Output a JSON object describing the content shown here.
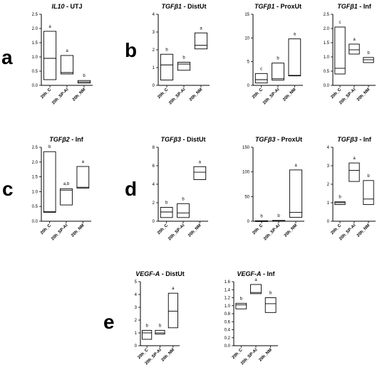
{
  "panel_labels": [
    {
      "id": "a",
      "text": "a"
    },
    {
      "id": "b",
      "text": "b"
    },
    {
      "id": "c",
      "text": "c"
    },
    {
      "id": "d",
      "text": "d"
    },
    {
      "id": "e",
      "text": "e"
    }
  ],
  "chart_data": [
    {
      "id": "il10-utj",
      "panel": "a",
      "type": "box",
      "title_gene": "IL10",
      "title_suffix": " - UTJ",
      "categories": [
        "20h_C",
        "20h_SP-AI",
        "20h_NM"
      ],
      "ylim": [
        0,
        2.5
      ],
      "yticks": [
        "0.0",
        "0.5",
        "1.0",
        "1.5",
        "2.0",
        "2.5"
      ],
      "boxes": [
        {
          "low": 0.2,
          "median": 0.95,
          "high": 1.9,
          "letter": "a"
        },
        {
          "low": 0.4,
          "median": 0.45,
          "high": 1.05,
          "letter": "a"
        },
        {
          "low": 0.08,
          "median": 0.12,
          "high": 0.17,
          "letter": "b"
        }
      ]
    },
    {
      "id": "tgfb1-distut",
      "panel": "b",
      "type": "box",
      "title_gene": "TGFβ1",
      "title_suffix": " - DistUt",
      "categories": [
        "20h_C",
        "20h_SP-AI",
        "20h_NM"
      ],
      "ylim": [
        0,
        4
      ],
      "yticks": [
        "0",
        "1",
        "2",
        "3",
        "4"
      ],
      "boxes": [
        {
          "low": 0.3,
          "median": 1.15,
          "high": 1.75,
          "letter": "b"
        },
        {
          "low": 0.85,
          "median": 1.2,
          "high": 1.3,
          "letter": "b"
        },
        {
          "low": 2.05,
          "median": 2.25,
          "high": 2.95,
          "letter": "a"
        }
      ]
    },
    {
      "id": "tgfb1-proxut",
      "panel": "b",
      "type": "box",
      "title_gene": "TGFβ1",
      "title_suffix": " - ProxUt",
      "categories": [
        "20h_C",
        "20h_SP-AI",
        "20h_NM"
      ],
      "ylim": [
        0,
        15
      ],
      "yticks": [
        "0",
        "5",
        "10",
        "15"
      ],
      "boxes": [
        {
          "low": 0.5,
          "median": 1.2,
          "high": 2.5,
          "letter": "c"
        },
        {
          "low": 1.1,
          "median": 1.4,
          "high": 4.7,
          "letter": "b"
        },
        {
          "low": 2.0,
          "median": 2.1,
          "high": 9.8,
          "letter": "a"
        }
      ]
    },
    {
      "id": "tgfb1-inf",
      "panel": "b",
      "type": "box",
      "title_gene": "TGFβ1",
      "title_suffix": " - Inf",
      "categories": [
        "20h_C",
        "20h_SP-AI",
        "20h_NM"
      ],
      "ylim": [
        0,
        2.5
      ],
      "yticks": [
        "0.0",
        "0.5",
        "1.0",
        "1.5",
        "2.0",
        "2.5"
      ],
      "boxes": [
        {
          "low": 0.4,
          "median": 0.6,
          "high": 2.05,
          "letter": "c"
        },
        {
          "low": 1.1,
          "median": 1.25,
          "high": 1.45,
          "letter": "a"
        },
        {
          "low": 0.8,
          "median": 0.9,
          "high": 0.98,
          "letter": "b"
        }
      ]
    },
    {
      "id": "tgfb2-inf",
      "panel": "c",
      "type": "box",
      "title_gene": "TGFβ2",
      "title_suffix": " - Inf",
      "categories": [
        "20h_C",
        "20h_SP-AI",
        "20h_NM"
      ],
      "ylim": [
        0,
        2.5
      ],
      "yticks": [
        "0.0",
        "0.5",
        "1.0",
        "1.5",
        "2.0",
        "2.5"
      ],
      "boxes": [
        {
          "low": 0.3,
          "median": 0.32,
          "high": 2.35,
          "letter": "b"
        },
        {
          "low": 0.55,
          "median": 1.05,
          "high": 1.1,
          "letter": "a,b"
        },
        {
          "low": 1.12,
          "median": 1.15,
          "high": 1.85,
          "letter": "a"
        }
      ]
    },
    {
      "id": "tgfb3-distut",
      "panel": "d",
      "type": "box",
      "title_gene": "TGFβ3",
      "title_suffix": " - DistUt",
      "categories": [
        "20h_C",
        "20h_SP-AI",
        "20h_NM"
      ],
      "ylim": [
        0,
        8
      ],
      "yticks": [
        "0",
        "2",
        "4",
        "6",
        "8"
      ],
      "boxes": [
        {
          "low": 0.4,
          "median": 1.0,
          "high": 1.5,
          "letter": "b"
        },
        {
          "low": 0.4,
          "median": 0.9,
          "high": 1.9,
          "letter": "b"
        },
        {
          "low": 4.5,
          "median": 5.3,
          "high": 5.9,
          "letter": "a"
        }
      ]
    },
    {
      "id": "tgfb3-proxut",
      "panel": "d",
      "type": "box",
      "title_gene": "TGFβ3",
      "title_suffix": " - ProxUt",
      "categories": [
        "20h_C",
        "20h_SP-AI",
        "20h_NM"
      ],
      "ylim": [
        0,
        150
      ],
      "yticks": [
        "0",
        "50",
        "100",
        "150"
      ],
      "boxes": [
        {
          "low": 0.3,
          "median": 0.5,
          "high": 0.9,
          "letter": "b"
        },
        {
          "low": 0.6,
          "median": 1.0,
          "high": 1.6,
          "letter": "b"
        },
        {
          "low": 8,
          "median": 18,
          "high": 104,
          "letter": "a"
        }
      ]
    },
    {
      "id": "tgfb3-inf",
      "panel": "d",
      "type": "box",
      "title_gene": "TGFβ3",
      "title_suffix": " - Inf",
      "categories": [
        "20h_C",
        "20h_SP-AI",
        "20h_NM"
      ],
      "ylim": [
        0,
        4
      ],
      "yticks": [
        "0",
        "1",
        "2",
        "3",
        "4"
      ],
      "boxes": [
        {
          "low": 0.9,
          "median": 1.0,
          "high": 1.05,
          "letter": "b"
        },
        {
          "low": 2.15,
          "median": 2.75,
          "high": 3.15,
          "letter": "a"
        },
        {
          "low": 0.9,
          "median": 1.2,
          "high": 2.2,
          "letter": "b"
        }
      ]
    },
    {
      "id": "vegfa-distut",
      "panel": "e",
      "type": "box",
      "title_gene": "VEGF-A",
      "title_suffix": " - DistUt",
      "categories": [
        "20h_C",
        "20h_SP-AI",
        "20h_NM"
      ],
      "ylim": [
        0,
        5
      ],
      "yticks": [
        "0",
        "1",
        "2",
        "3",
        "4",
        "5"
      ],
      "boxes": [
        {
          "low": 0.5,
          "median": 1.0,
          "high": 1.2,
          "letter": "b"
        },
        {
          "low": 0.9,
          "median": 1.0,
          "high": 1.2,
          "letter": "b"
        },
        {
          "low": 1.4,
          "median": 2.7,
          "high": 4.1,
          "letter": "a"
        }
      ]
    },
    {
      "id": "vegfa-inf",
      "panel": "e",
      "type": "box",
      "title_gene": "VEGF-A",
      "title_suffix": " - Inf",
      "categories": [
        "20h_C",
        "20h_SP-AI",
        "20h_NM"
      ],
      "ylim": [
        0,
        1.6
      ],
      "yticks": [
        "0.0",
        "0.2",
        "0.4",
        "0.6",
        "0.8",
        "1.0",
        "1.2",
        "1.4",
        "1.6"
      ],
      "boxes": [
        {
          "low": 0.92,
          "median": 1.02,
          "high": 1.06,
          "letter": "b"
        },
        {
          "low": 1.3,
          "median": 1.33,
          "high": 1.53,
          "letter": "a"
        },
        {
          "low": 0.83,
          "median": 1.05,
          "high": 1.2,
          "letter": "b"
        }
      ]
    }
  ]
}
